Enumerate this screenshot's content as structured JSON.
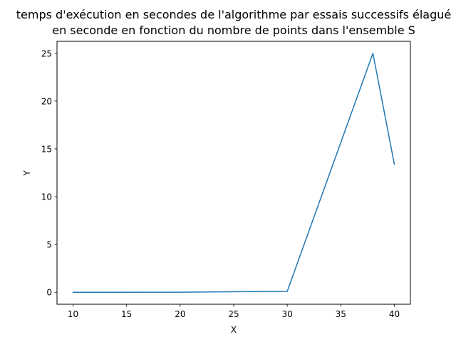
{
  "chart_data": {
    "type": "line",
    "title_lines": [
      "temps d'exécution en secondes de  l'algorithme par essais successifs élagué",
      "en seconde en fonction du nombre de points dans l'ensemble S"
    ],
    "xlabel": "X",
    "ylabel": "Y",
    "xlim": [
      8.5,
      41.5
    ],
    "ylim": [
      -1.25,
      26.25
    ],
    "x_ticks": [
      10,
      15,
      20,
      25,
      30,
      35,
      40
    ],
    "y_ticks": [
      0,
      5,
      10,
      15,
      20,
      25
    ],
    "grid": false,
    "series": [
      {
        "color": "#1f77b4",
        "x": [
          10,
          20,
          30,
          38,
          40
        ],
        "y": [
          0.0,
          0.01,
          0.1,
          25.0,
          13.4
        ]
      }
    ]
  }
}
